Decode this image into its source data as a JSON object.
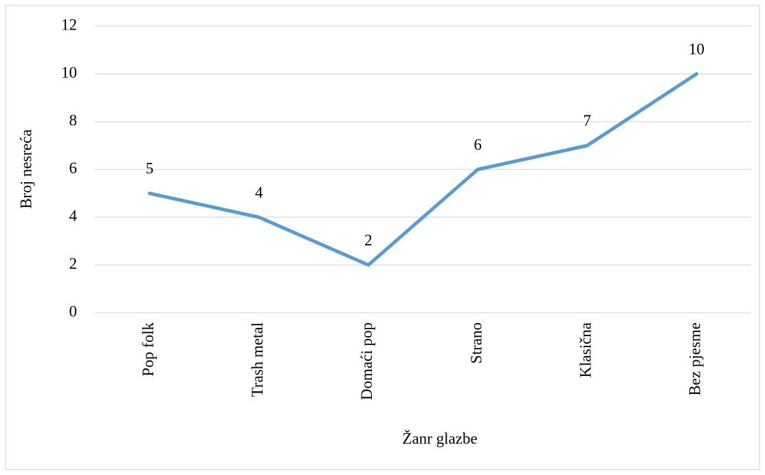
{
  "chart_data": {
    "type": "line",
    "categories": [
      "Pop folk",
      "Trash metal",
      "Domaći pop",
      "Strano",
      "Klasična",
      "Bez pjesme"
    ],
    "series": [
      {
        "name": "Broj nesreća",
        "color": "#5b9bd5",
        "values": [
          5,
          4,
          2,
          6,
          7,
          10
        ]
      }
    ],
    "ylim": [
      0,
      12
    ],
    "yticks": [
      0,
      2,
      4,
      6,
      8,
      10,
      12
    ],
    "grid": true,
    "xlabel": "Žanr glazbe",
    "ylabel": "Broj nesreća"
  }
}
